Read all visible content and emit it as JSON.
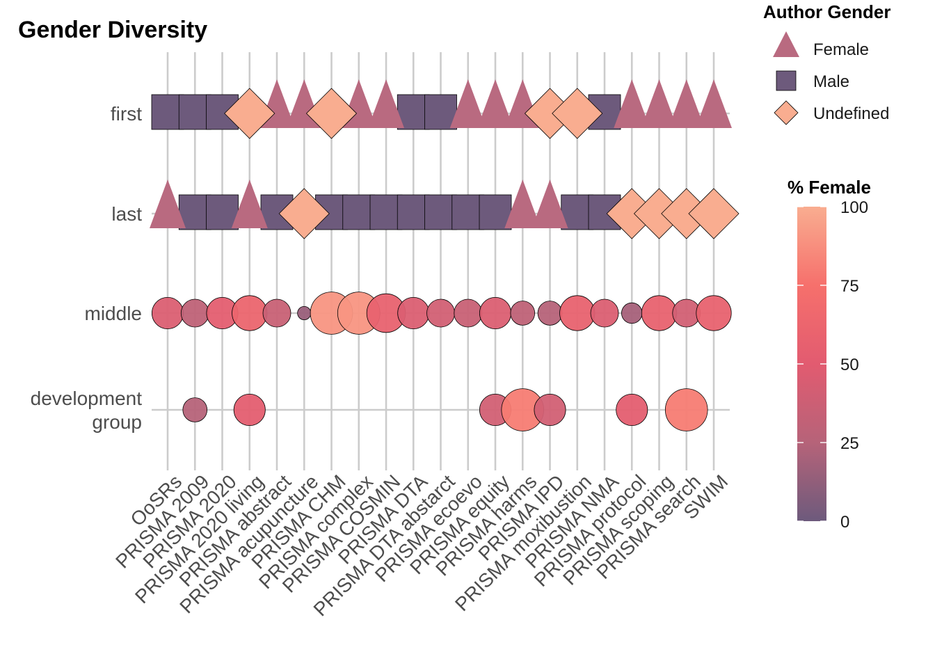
{
  "chart_data": {
    "type": "scatter",
    "title": "Gender Diversity",
    "xlabel": "",
    "ylabel": "",
    "categories": [
      "OoSRs",
      "PRISMA 2009",
      "PRISMA 2020",
      "PRISMA 2020 living",
      "PRISMA abstract",
      "PRISMA acupuncture",
      "PRISMA CHM",
      "PRISMA complex",
      "PRISMA COSMIN",
      "PRISMA DTA",
      "PRISMA DTA abstarct",
      "PRISMA ecoevo",
      "PRISMA equity",
      "PRISMA harms",
      "PRISMA IPD",
      "PRISMA moxibustion",
      "PRISMA NMA",
      "PRISMA protocol",
      "PRISMA scoping",
      "PRISMA search",
      "SWIM"
    ],
    "rows": [
      "first",
      "last",
      "middle",
      "development\ngroup"
    ],
    "row_labels": [
      [
        "first"
      ],
      [
        "last"
      ],
      [
        "middle"
      ],
      [
        "development",
        "group"
      ]
    ],
    "first": [
      "Male",
      "Male",
      "Male",
      "Undefined",
      "Female",
      "Female",
      "Undefined",
      "Female",
      "Female",
      "Male",
      "Male",
      "Female",
      "Female",
      "Female",
      "Undefined",
      "Undefined",
      "Male",
      "Female",
      "Female",
      "Female",
      "Female"
    ],
    "last": [
      "Female",
      "Male",
      "Male",
      "Female",
      "Male",
      "Undefined",
      "Male",
      "Male",
      "Male",
      "Male",
      "Male",
      "Male",
      "Male",
      "Female",
      "Female",
      "Male",
      "Male",
      "Undefined",
      "Undefined",
      "Undefined",
      "Undefined"
    ],
    "middle": {
      "pct_female": [
        45,
        30,
        50,
        60,
        35,
        15,
        90,
        90,
        55,
        45,
        40,
        35,
        45,
        30,
        25,
        55,
        45,
        20,
        55,
        40,
        55
      ],
      "size": [
        6,
        5,
        6,
        7,
        5,
        1,
        9,
        9,
        8,
        6,
        5,
        5,
        6,
        4,
        4,
        7,
        5,
        3,
        7,
        5,
        7
      ]
    },
    "development group": {
      "present": [
        false,
        true,
        false,
        true,
        false,
        false,
        false,
        false,
        false,
        false,
        false,
        false,
        true,
        true,
        true,
        false,
        false,
        true,
        false,
        true,
        false
      ],
      "pct_female": [
        null,
        25,
        null,
        50,
        null,
        null,
        null,
        null,
        null,
        null,
        null,
        null,
        40,
        80,
        40,
        null,
        null,
        50,
        null,
        80,
        null
      ],
      "size": [
        null,
        4,
        null,
        6,
        null,
        null,
        null,
        null,
        null,
        null,
        null,
        null,
        6,
        9,
        6,
        null,
        null,
        6,
        null,
        9,
        null
      ]
    },
    "legend_gender": {
      "title": "Author Gender",
      "items": [
        {
          "label": "Female",
          "shape": "triangle",
          "color": "#b96a80"
        },
        {
          "label": "Male",
          "shape": "square",
          "color": "#6d5a7c"
        },
        {
          "label": "Undefined",
          "shape": "diamond",
          "color": "#f9ad90"
        }
      ]
    },
    "legend_pct": {
      "title": "% Female",
      "ticks": [
        0,
        25,
        50,
        75,
        100
      ],
      "range": [
        0,
        100
      ],
      "colors": [
        "#6d5a7c",
        "#b66379",
        "#e45e70",
        "#f6706c",
        "#f9ad90"
      ]
    },
    "grid": true,
    "legend_position": "right"
  }
}
